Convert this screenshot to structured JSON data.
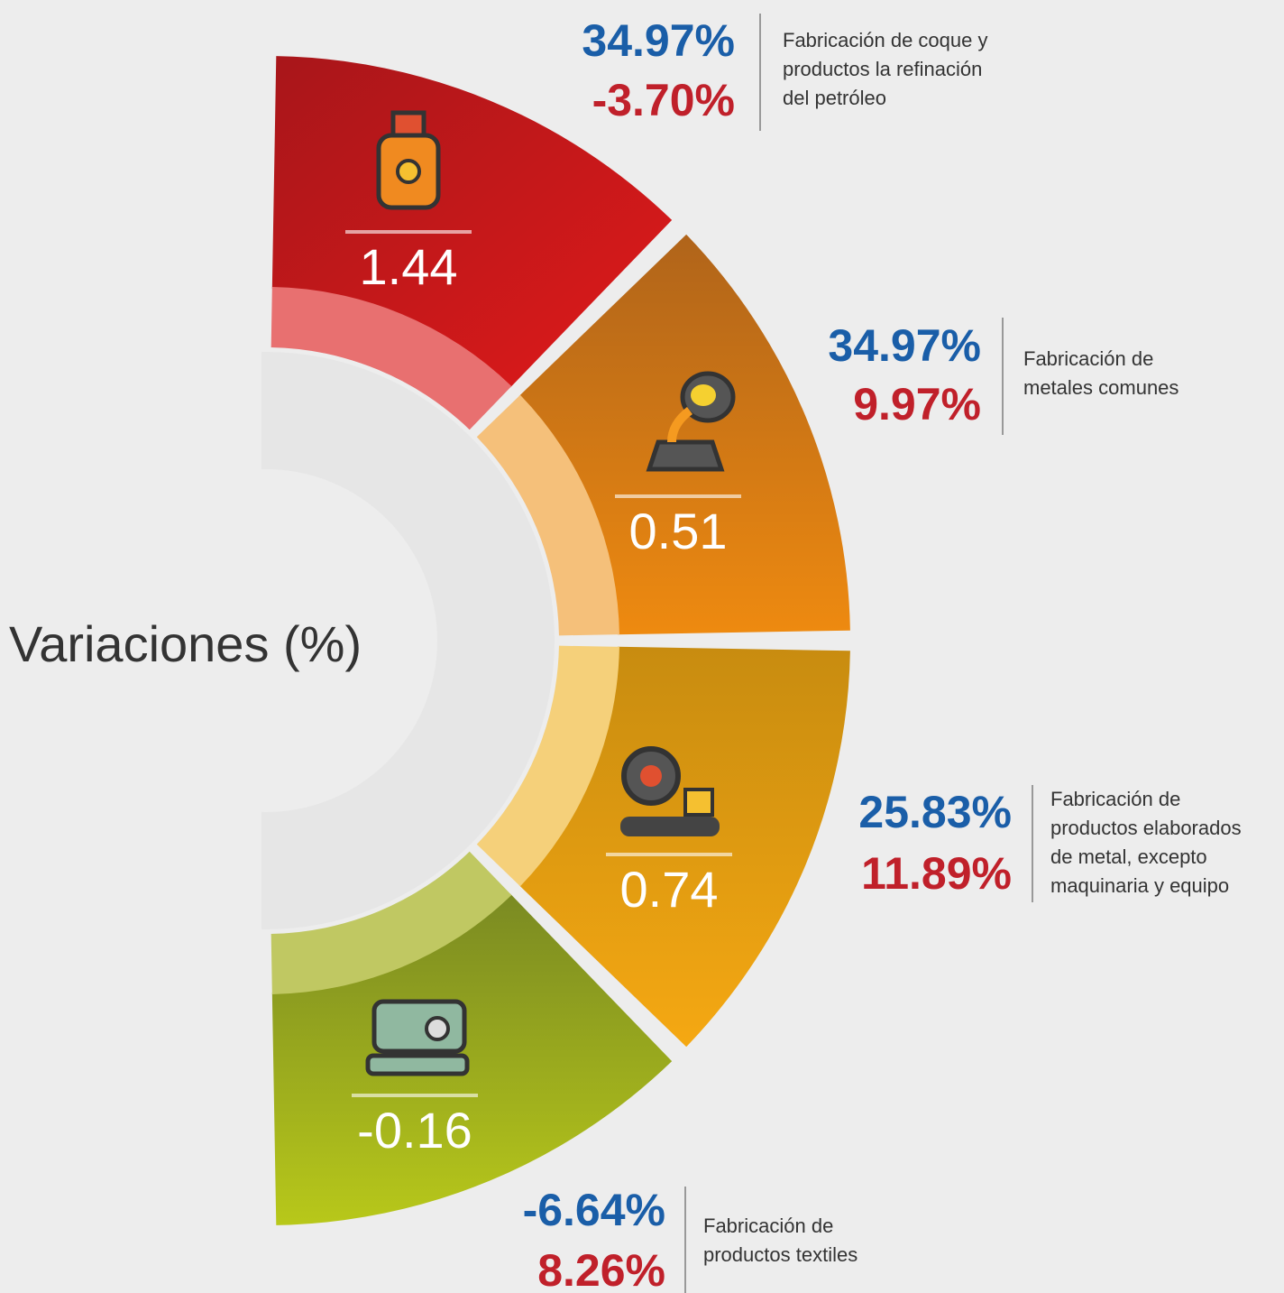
{
  "title": "Variaciones (%)",
  "segments": [
    {
      "value": "1.44",
      "change_1": "34.97%",
      "change_2": "-3.70%",
      "description": [
        "Fabricación de coque y",
        "productos la refinación",
        "del petróleo"
      ]
    },
    {
      "value": "0.51",
      "change_1": "34.97%",
      "change_2": "9.97%",
      "description": [
        "Fabricación de",
        "metales comunes"
      ]
    },
    {
      "value": "0.74",
      "change_1": "25.83%",
      "change_2": "11.89%",
      "description": [
        "Fabricación de",
        "productos elaborados",
        "de metal, excepto",
        "maquinaria y equipo"
      ]
    },
    {
      "value": "-0.16",
      "change_1": "-6.64%",
      "change_2": "8.26%",
      "description": [
        "Fabricación de",
        "productos textiles"
      ]
    }
  ]
}
